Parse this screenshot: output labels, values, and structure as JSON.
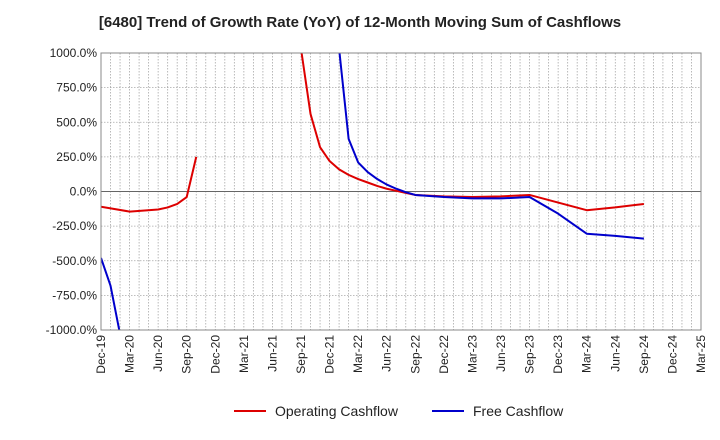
{
  "chart_data": {
    "type": "line",
    "title": "[6480]  Trend of Growth Rate (YoY) of 12-Month Moving Sum of Cashflows",
    "xlabel": "",
    "ylabel": "",
    "ylim": [
      -1000,
      1000
    ],
    "yticks": [
      1000,
      750,
      500,
      250,
      0,
      -250,
      -500,
      -750,
      -1000
    ],
    "ytick_labels": [
      "1000.0%",
      "750.0%",
      "500.0%",
      "250.0%",
      "0.0%",
      "-250.0%",
      "-500.0%",
      "-750.0%",
      "-1000.0%"
    ],
    "x_start": "Dec-19",
    "x_end": "Mar-25",
    "xtick_labels": [
      "Dec-19",
      "Mar-20",
      "Jun-20",
      "Sep-20",
      "Dec-20",
      "Mar-21",
      "Jun-21",
      "Sep-21",
      "Dec-21",
      "Mar-22",
      "Jun-22",
      "Sep-22",
      "Dec-22",
      "Mar-23",
      "Jun-23",
      "Sep-23",
      "Dec-23",
      "Mar-24",
      "Jun-24",
      "Sep-24",
      "Dec-24",
      "Mar-25"
    ],
    "grid": true,
    "legend_position": "bottom",
    "series": [
      {
        "name": "Operating Cashflow",
        "color": "#dd0000",
        "points": [
          [
            "Dec-19",
            -110
          ],
          [
            "Mar-20",
            -145
          ],
          [
            "Jun-20",
            -130
          ],
          [
            "Jul-20",
            -115
          ],
          [
            "Aug-20",
            -90
          ],
          [
            "Sep-20",
            -40
          ],
          [
            "Oct-20",
            250
          ],
          null,
          [
            "Sep-21",
            1030
          ],
          [
            "Oct-21",
            560
          ],
          [
            "Nov-21",
            320
          ],
          [
            "Dec-21",
            220
          ],
          [
            "Jan-22",
            160
          ],
          [
            "Feb-22",
            120
          ],
          [
            "Mar-22",
            90
          ],
          [
            "Apr-22",
            65
          ],
          [
            "May-22",
            40
          ],
          [
            "Jun-22",
            20
          ],
          [
            "Jul-22",
            5
          ],
          [
            "Aug-22",
            -10
          ],
          [
            "Sep-22",
            -25
          ],
          [
            "Dec-22",
            -35
          ],
          [
            "Mar-23",
            -40
          ],
          [
            "Jun-23",
            -35
          ],
          [
            "Sep-23",
            -25
          ],
          [
            "Dec-23",
            -80
          ],
          [
            "Mar-24",
            -135
          ],
          [
            "Jun-24",
            -115
          ],
          [
            "Sep-24",
            -90
          ]
        ]
      },
      {
        "name": "Free Cashflow",
        "color": "#0000cc",
        "points": [
          [
            "Dec-19",
            -480
          ],
          [
            "Jan-20",
            -680
          ],
          [
            "Feb-20",
            -1030
          ],
          null,
          [
            "Jan-22",
            1030
          ],
          [
            "Feb-22",
            380
          ],
          [
            "Mar-22",
            210
          ],
          [
            "Apr-22",
            140
          ],
          [
            "May-22",
            90
          ],
          [
            "Jun-22",
            50
          ],
          [
            "Jul-22",
            20
          ],
          [
            "Aug-22",
            -5
          ],
          [
            "Sep-22",
            -25
          ],
          [
            "Dec-22",
            -40
          ],
          [
            "Mar-23",
            -50
          ],
          [
            "Jun-23",
            -50
          ],
          [
            "Sep-23",
            -40
          ],
          [
            "Dec-23",
            -160
          ],
          [
            "Mar-24",
            -305
          ],
          [
            "Jun-24",
            -320
          ],
          [
            "Sep-24",
            -340
          ]
        ]
      }
    ]
  }
}
